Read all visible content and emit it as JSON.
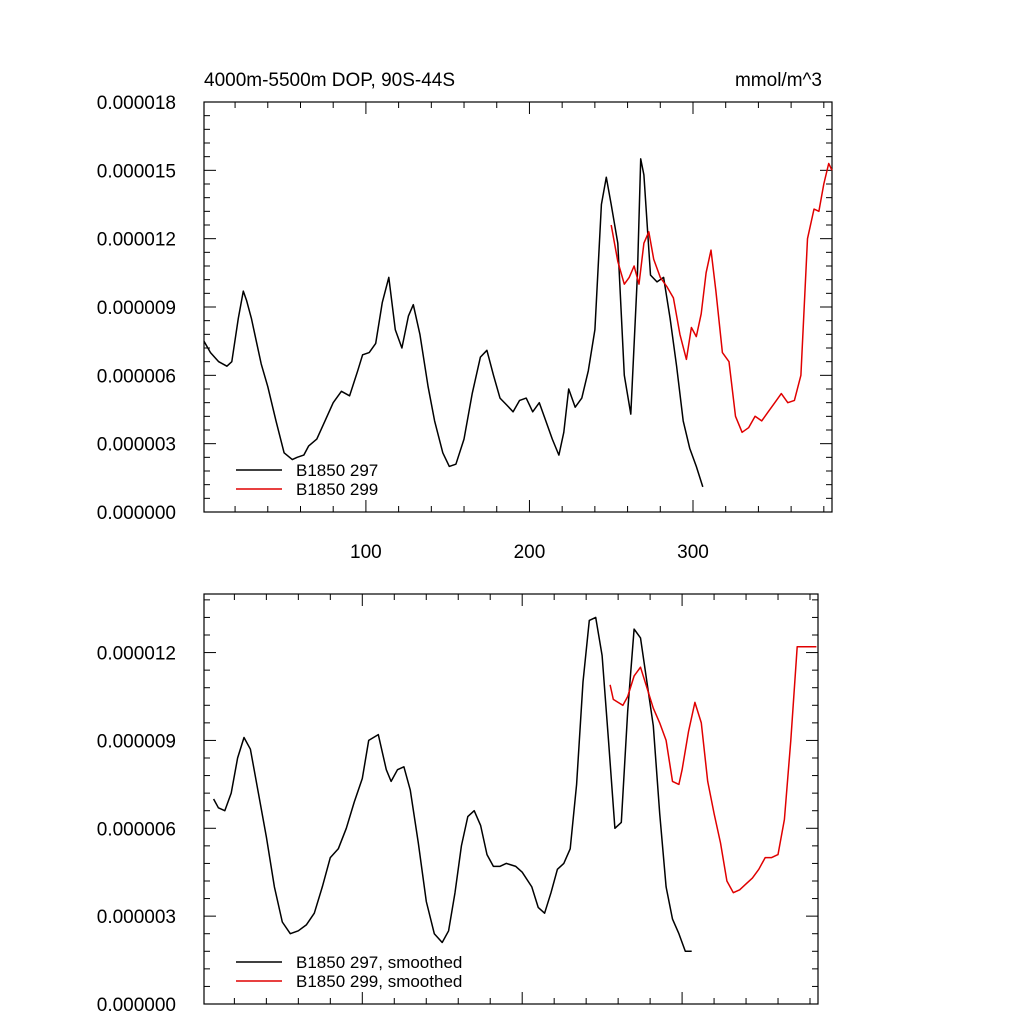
{
  "chart_data": [
    {
      "type": "line",
      "title_left": "4000m-5500m DOP, 90S-44S",
      "title_right": "mmol/m^3",
      "xlabel": "",
      "ylabel": "",
      "xlim": [
        1,
        385
      ],
      "ylim": [
        0,
        1.8e-05
      ],
      "y_tick_labels": [
        "0.000000",
        "0.000003",
        "0.000006",
        "0.000009",
        "0.000012",
        "0.000015",
        "0.000018"
      ],
      "y_tick_values": [
        0,
        3e-06,
        6e-06,
        9e-06,
        1.2e-05,
        1.5e-05,
        1.8e-05
      ],
      "x_tick_labels": [
        "100",
        "200",
        "300"
      ],
      "x_tick_values": [
        100,
        200,
        300
      ],
      "legend_position": "bottom-left",
      "series": [
        {
          "name": "B1850 297",
          "color": "#000000",
          "x": [
            1,
            5,
            10,
            15,
            18,
            22,
            25,
            27,
            30,
            33,
            36,
            40,
            45,
            50,
            55,
            58,
            62,
            65,
            70,
            75,
            80,
            85,
            90,
            95,
            98,
            102,
            106,
            110,
            114,
            118,
            122,
            126,
            129,
            133,
            138,
            142,
            147,
            151,
            155,
            160,
            165,
            170,
            174,
            178,
            182,
            186,
            190,
            194,
            198,
            202,
            206,
            210,
            214,
            218,
            221,
            224,
            228,
            232,
            236,
            240,
            244,
            247,
            250,
            254,
            258,
            262,
            266,
            268,
            270,
            274,
            278,
            282,
            286,
            290,
            294,
            298,
            302,
            306
          ],
          "values": [
            7.5e-06,
            7e-06,
            6.6e-06,
            6.4e-06,
            6.6e-06,
            8.5e-06,
            9.7e-06,
            9.3e-06,
            8.5e-06,
            7.5e-06,
            6.5e-06,
            5.5e-06,
            4e-06,
            2.6e-06,
            2.3e-06,
            2.4e-06,
            2.5e-06,
            2.9e-06,
            3.2e-06,
            4e-06,
            4.8e-06,
            5.3e-06,
            5.1e-06,
            6.2e-06,
            6.9e-06,
            7e-06,
            7.4e-06,
            9.2e-06,
            1.03e-05,
            8e-06,
            7.2e-06,
            8.6e-06,
            9.1e-06,
            7.8e-06,
            5.5e-06,
            4e-06,
            2.6e-06,
            2e-06,
            2.1e-06,
            3.2e-06,
            5.2e-06,
            6.8e-06,
            7.1e-06,
            6e-06,
            5e-06,
            4.7e-06,
            4.4e-06,
            4.9e-06,
            5e-06,
            4.4e-06,
            4.8e-06,
            4e-06,
            3.2e-06,
            2.5e-06,
            3.5e-06,
            5.4e-06,
            4.6e-06,
            5e-06,
            6.2e-06,
            8e-06,
            1.35e-05,
            1.47e-05,
            1.35e-05,
            1.18e-05,
            6e-06,
            4.3e-06,
            1.04e-05,
            1.55e-05,
            1.48e-05,
            1.04e-05,
            1.01e-05,
            1.03e-05,
            8.5e-06,
            6.4e-06,
            4e-06,
            2.8e-06,
            2e-06,
            1.1e-06
          ]
        },
        {
          "name": "B1850 299",
          "color": "#e00000",
          "x": [
            250,
            254,
            258,
            261,
            264,
            267,
            270,
            273,
            276,
            280,
            284,
            288,
            292,
            296,
            299,
            302,
            305,
            308,
            311,
            314,
            318,
            322,
            326,
            330,
            334,
            338,
            342,
            346,
            350,
            354,
            358,
            362,
            366,
            370,
            374,
            377,
            380,
            383,
            385
          ],
          "values": [
            1.26e-05,
            1.1e-05,
            1e-05,
            1.03e-05,
            1.08e-05,
            1e-05,
            1.18e-05,
            1.23e-05,
            1.11e-05,
            1.03e-05,
            9.9e-06,
            9.4e-06,
            7.8e-06,
            6.7e-06,
            8.1e-06,
            7.7e-06,
            8.7e-06,
            1.05e-05,
            1.15e-05,
            9.7e-06,
            7e-06,
            6.6e-06,
            4.2e-06,
            3.5e-06,
            3.7e-06,
            4.2e-06,
            4e-06,
            4.4e-06,
            4.8e-06,
            5.2e-06,
            4.8e-06,
            4.9e-06,
            6e-06,
            1.2e-05,
            1.33e-05,
            1.32e-05,
            1.44e-05,
            1.53e-05,
            1.5e-05
          ]
        }
      ]
    },
    {
      "type": "line",
      "title_left": "",
      "title_right": "",
      "xlabel": "",
      "ylabel": "",
      "xlim": [
        1,
        385
      ],
      "ylim": [
        0,
        1.4e-05
      ],
      "y_tick_labels": [
        "0.000000",
        "0.000003",
        "0.000006",
        "0.000009",
        "0.000012"
      ],
      "y_tick_values": [
        0,
        3e-06,
        6e-06,
        9e-06,
        1.2e-05
      ],
      "x_tick_labels": [],
      "x_tick_values": [
        100,
        200,
        300
      ],
      "legend_position": "bottom-left",
      "series": [
        {
          "name": "B1850 297, smoothed",
          "color": "#000000",
          "x": [
            7,
            10,
            14,
            18,
            22,
            26,
            30,
            35,
            40,
            45,
            50,
            55,
            60,
            65,
            70,
            75,
            80,
            85,
            90,
            95,
            100,
            104,
            110,
            115,
            118,
            122,
            126,
            130,
            135,
            140,
            145,
            150,
            154,
            158,
            162,
            166,
            170,
            174,
            178,
            182,
            186,
            190,
            196,
            200,
            206,
            210,
            214,
            218,
            222,
            226,
            230,
            234,
            238,
            242,
            246,
            250,
            254,
            258,
            262,
            266,
            270,
            274,
            278,
            282,
            286,
            290,
            294,
            298,
            302,
            306
          ],
          "values": [
            7e-06,
            6.7e-06,
            6.6e-06,
            7.2e-06,
            8.4e-06,
            9.1e-06,
            8.7e-06,
            7.2e-06,
            5.7e-06,
            4e-06,
            2.8e-06,
            2.4e-06,
            2.5e-06,
            2.7e-06,
            3.1e-06,
            4e-06,
            5e-06,
            5.3e-06,
            6e-06,
            6.9e-06,
            7.7e-06,
            9e-06,
            9.2e-06,
            8e-06,
            7.6e-06,
            8e-06,
            8.1e-06,
            7.3e-06,
            5.5e-06,
            3.5e-06,
            2.4e-06,
            2.1e-06,
            2.5e-06,
            3.8e-06,
            5.4e-06,
            6.4e-06,
            6.6e-06,
            6.1e-06,
            5.1e-06,
            4.7e-06,
            4.7e-06,
            4.8e-06,
            4.7e-06,
            4.5e-06,
            4e-06,
            3.3e-06,
            3.1e-06,
            3.8e-06,
            4.6e-06,
            4.8e-06,
            5.3e-06,
            7.5e-06,
            1.1e-05,
            1.31e-05,
            1.32e-05,
            1.19e-05,
            9e-06,
            6e-06,
            6.2e-06,
            1e-05,
            1.28e-05,
            1.25e-05,
            1.1e-05,
            9.5e-06,
            6.5e-06,
            4e-06,
            2.9e-06,
            2.4e-06,
            1.8e-06,
            1.8e-06
          ]
        },
        {
          "name": "B1850 299, smoothed",
          "color": "#e00000",
          "x": [
            255,
            257,
            260,
            263,
            266,
            270,
            274,
            278,
            282,
            286,
            290,
            294,
            298,
            300,
            304,
            308,
            312,
            316,
            320,
            324,
            328,
            332,
            336,
            340,
            344,
            348,
            352,
            356,
            360,
            364,
            368,
            372,
            376,
            380,
            384
          ],
          "values": [
            1.09e-05,
            1.04e-05,
            1.03e-05,
            1.02e-05,
            1.05e-05,
            1.12e-05,
            1.15e-05,
            1.08e-05,
            1.01e-05,
            9.6e-06,
            9e-06,
            7.6e-06,
            7.5e-06,
            8e-06,
            9.3e-06,
            1.03e-05,
            9.6e-06,
            7.6e-06,
            6.5e-06,
            5.5e-06,
            4.2e-06,
            3.8e-06,
            3.9e-06,
            4.1e-06,
            4.3e-06,
            4.6e-06,
            5e-06,
            5e-06,
            5.1e-06,
            6.3e-06,
            9e-06,
            1.22e-05,
            1.22e-05,
            1.22e-05,
            1.22e-05
          ]
        }
      ]
    }
  ]
}
